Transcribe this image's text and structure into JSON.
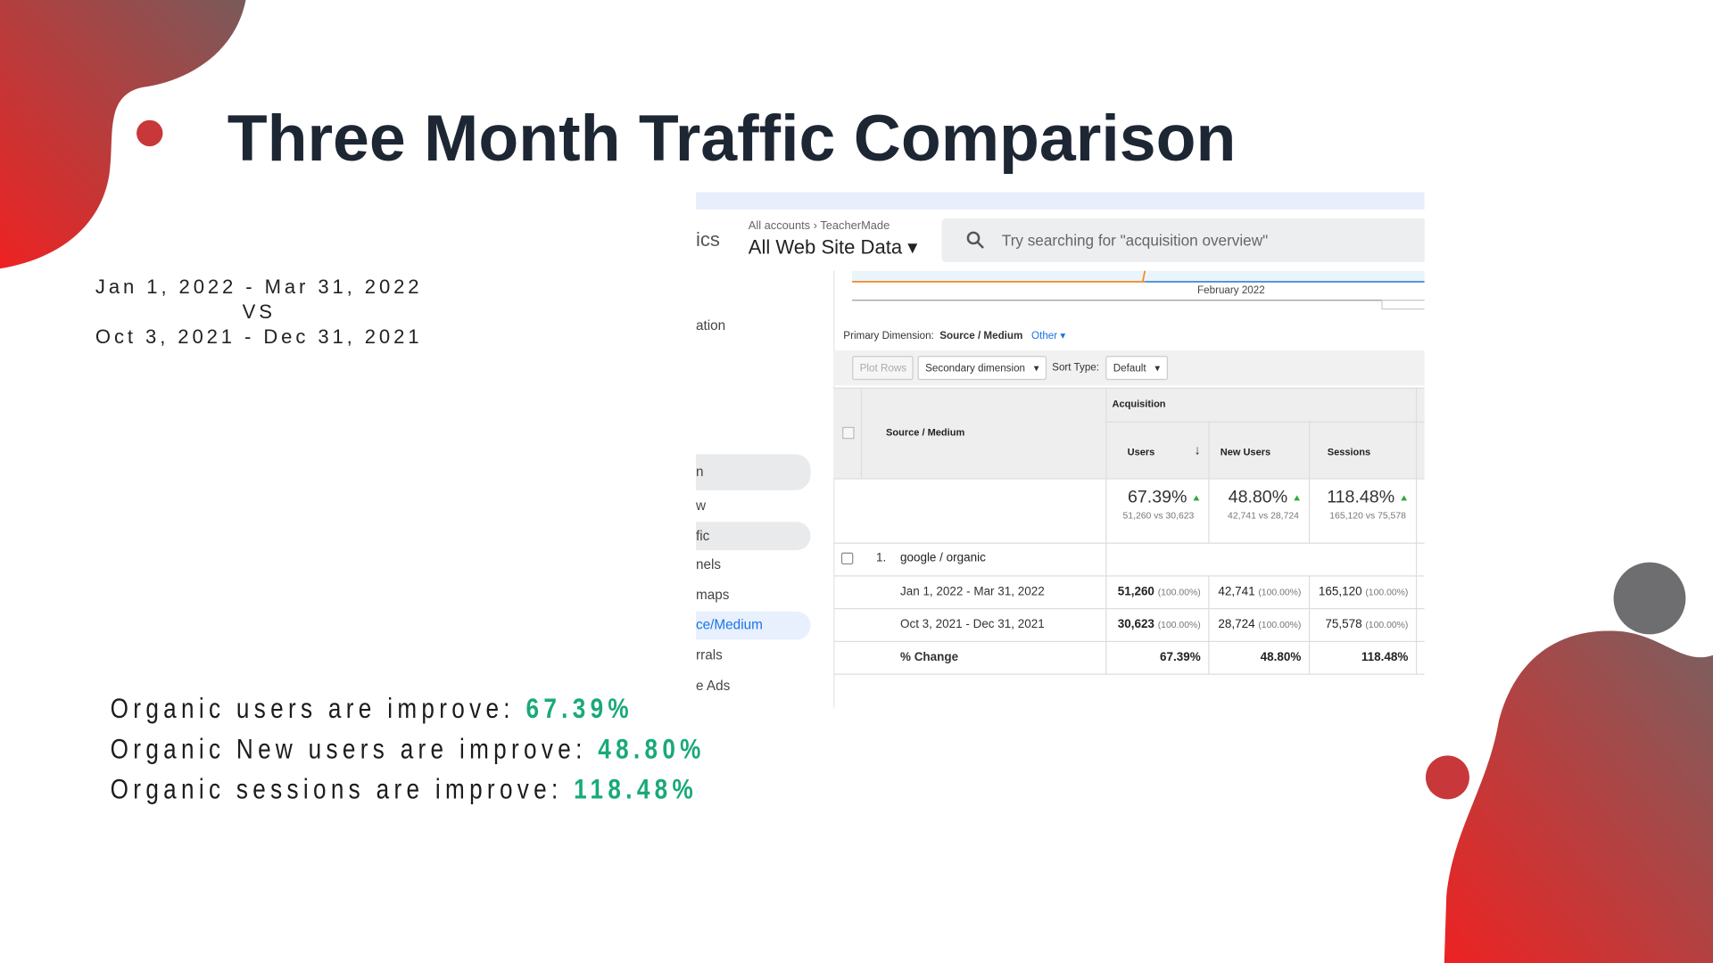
{
  "title": "Three Month Traffic Comparison",
  "date_ranges": [
    "Jan 1, 2022 - Mar 31, 2022",
    "VS",
    "Oct 3, 2021 - Dec 31, 2021"
  ],
  "screenshot": {
    "app_partial": "ics",
    "breadcrumb": [
      "All accounts",
      "TeacherMade"
    ],
    "view": "All Web Site Data",
    "search_placeholder": "Try searching for \"acquisition overview\"",
    "chart_label": "February 2022",
    "nav": [
      "ation",
      "n",
      "w",
      "fic",
      "nels",
      "maps",
      "ce/Medium",
      "rrals",
      "e Ads"
    ],
    "primary_dimension_label": "Primary Dimension:",
    "primary_dimension": "Source / Medium",
    "other": "Other",
    "buttons": [
      "Plot Rows",
      "Secondary dimension"
    ],
    "sort_type_label": "Sort Type:",
    "sort_type": "Default",
    "table": {
      "group": "Acquisition",
      "dimension": "Source / Medium",
      "columns": [
        "Users",
        "New Users",
        "Sessions"
      ],
      "totals": [
        {
          "change": "67.39%",
          "compare": "51,260 vs 30,623"
        },
        {
          "change": "48.80%",
          "compare": "42,741 vs 28,724"
        },
        {
          "change": "118.48%",
          "compare": "165,120 vs 75,578"
        }
      ],
      "row_index": "1.",
      "row_name": "google / organic",
      "rows": [
        {
          "label": "Jan 1, 2022 - Mar 31, 2022",
          "cells": [
            [
              "51,260",
              "(100.00%)"
            ],
            [
              "42,741",
              "(100.00%)"
            ],
            [
              "165,120",
              "(100.00%)"
            ]
          ]
        },
        {
          "label": "Oct 3, 2021 - Dec 31, 2021",
          "cells": [
            [
              "30,623",
              "(100.00%)"
            ],
            [
              "28,724",
              "(100.00%)"
            ],
            [
              "75,578",
              "(100.00%)"
            ]
          ]
        }
      ],
      "change_row": {
        "label": "% Change",
        "cells": [
          "67.39%",
          "48.80%",
          "118.48%"
        ]
      }
    }
  },
  "summary": [
    {
      "text": "Organic users are improve:",
      "value": "67.39%"
    },
    {
      "text": "Organic New users are improve:",
      "value": "48.80%"
    },
    {
      "text": "Organic sessions are improve:",
      "value": "118.48%"
    }
  ]
}
